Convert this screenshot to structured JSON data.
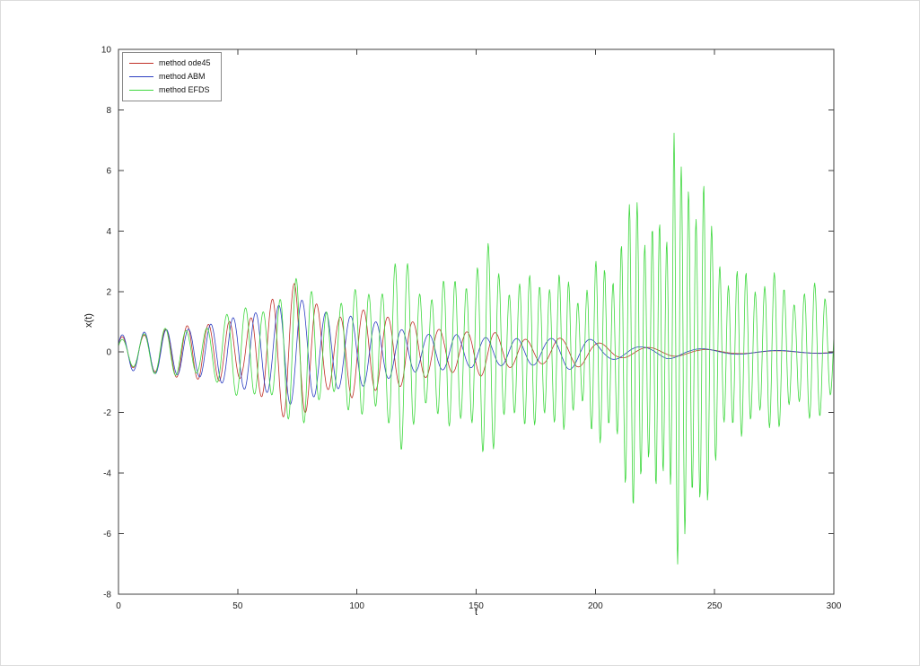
{
  "figure": {
    "background": "#ffffff",
    "border_color": "#dcdcdc",
    "axis_color": "#404040"
  },
  "chart_data": {
    "type": "line",
    "title": "",
    "xlabel": "t",
    "ylabel": "x(t)",
    "xlim": [
      0,
      300
    ],
    "ylim": [
      -8,
      10
    ],
    "xticks": [
      0,
      50,
      100,
      150,
      200,
      250,
      300
    ],
    "yticks": [
      -8,
      -6,
      -4,
      -2,
      0,
      2,
      4,
      6,
      8,
      10
    ],
    "grid": false,
    "legend_position": "top-left",
    "legend": [
      "method ode45",
      "method ABM",
      "method EFDS"
    ],
    "series": [
      {
        "name": "method ode45",
        "color": "#c03028",
        "phase0": 0.08,
        "am": {
          "depth": 0.18,
          "ratio": 0.23,
          "phase": 0.1
        },
        "amplitude_envelope": [
          [
            0,
            0.6
          ],
          [
            10,
            0.65
          ],
          [
            20,
            0.78
          ],
          [
            30,
            0.9
          ],
          [
            40,
            1.1
          ],
          [
            46,
            1.25
          ],
          [
            52,
            0.95
          ],
          [
            58,
            1.4
          ],
          [
            64,
            1.7
          ],
          [
            70,
            2.3
          ],
          [
            74,
            2.5
          ],
          [
            80,
            2.3
          ],
          [
            86,
            1.6
          ],
          [
            92,
            1.25
          ],
          [
            98,
            1.6
          ],
          [
            104,
            1.35
          ],
          [
            112,
            1.2
          ],
          [
            120,
            1.3
          ],
          [
            128,
            1.05
          ],
          [
            136,
            0.85
          ],
          [
            144,
            0.65
          ],
          [
            152,
            0.8
          ],
          [
            160,
            0.6
          ],
          [
            168,
            0.5
          ],
          [
            176,
            0.45
          ],
          [
            184,
            0.55
          ],
          [
            192,
            0.6
          ],
          [
            200,
            0.35
          ],
          [
            210,
            0.2
          ],
          [
            222,
            0.15
          ],
          [
            232,
            0.15
          ],
          [
            242,
            0.1
          ],
          [
            260,
            0.06
          ],
          [
            300,
            0.04
          ]
        ],
        "period_profile": [
          [
            0,
            9.2
          ],
          [
            50,
            8.8
          ],
          [
            80,
            9.5
          ],
          [
            110,
            10.2
          ],
          [
            140,
            11.5
          ],
          [
            170,
            13
          ],
          [
            200,
            18
          ],
          [
            240,
            26
          ],
          [
            300,
            36
          ]
        ]
      },
      {
        "name": "method ABM",
        "color": "#2d3fc2",
        "phase0": 0.08,
        "am": {
          "depth": 0.18,
          "ratio": 0.19,
          "phase": 0.5
        },
        "amplitude_envelope": [
          [
            0,
            0.6
          ],
          [
            10,
            0.65
          ],
          [
            20,
            0.78
          ],
          [
            30,
            0.9
          ],
          [
            40,
            1.15
          ],
          [
            48,
            1.25
          ],
          [
            56,
            1.3
          ],
          [
            64,
            1.35
          ],
          [
            70,
            1.8
          ],
          [
            76,
            2.0
          ],
          [
            84,
            1.7
          ],
          [
            92,
            1.45
          ],
          [
            100,
            1.3
          ],
          [
            110,
            0.95
          ],
          [
            120,
            0.72
          ],
          [
            130,
            0.65
          ],
          [
            140,
            0.72
          ],
          [
            150,
            0.6
          ],
          [
            160,
            0.5
          ],
          [
            170,
            0.45
          ],
          [
            180,
            0.42
          ],
          [
            188,
            0.6
          ],
          [
            196,
            0.5
          ],
          [
            204,
            0.3
          ],
          [
            212,
            0.25
          ],
          [
            220,
            0.2
          ],
          [
            230,
            0.28
          ],
          [
            240,
            0.15
          ],
          [
            252,
            0.1
          ],
          [
            270,
            0.06
          ],
          [
            300,
            0.04
          ]
        ],
        "period_profile": [
          [
            0,
            9.2
          ],
          [
            50,
            9.4
          ],
          [
            80,
            10.0
          ],
          [
            110,
            10.8
          ],
          [
            140,
            11.8
          ],
          [
            170,
            13.5
          ],
          [
            200,
            19
          ],
          [
            240,
            28
          ],
          [
            300,
            38
          ]
        ]
      },
      {
        "name": "method EFDS",
        "color": "#3fd83f",
        "phase0": 0.08,
        "am": {
          "depth": 0.32,
          "ratio": 0.27,
          "phase": 0.2
        },
        "amplitude_envelope": [
          [
            0,
            0.6
          ],
          [
            15,
            0.72
          ],
          [
            30,
            0.95
          ],
          [
            45,
            1.3
          ],
          [
            55,
            1.6
          ],
          [
            65,
            2.1
          ],
          [
            72,
            2.5
          ],
          [
            80,
            2.35
          ],
          [
            90,
            1.8
          ],
          [
            100,
            2.1
          ],
          [
            108,
            2.6
          ],
          [
            118,
            3.3
          ],
          [
            124,
            2.8
          ],
          [
            132,
            2.3
          ],
          [
            140,
            2.5
          ],
          [
            148,
            3.3
          ],
          [
            155,
            3.6
          ],
          [
            162,
            2.9
          ],
          [
            170,
            2.4
          ],
          [
            178,
            3.0
          ],
          [
            186,
            2.6
          ],
          [
            194,
            2.3
          ],
          [
            200,
            3.0
          ],
          [
            208,
            3.4
          ],
          [
            214,
            4.8
          ],
          [
            218,
            6.6
          ],
          [
            222,
            4.3
          ],
          [
            227,
            4.5
          ],
          [
            231,
            5.4
          ],
          [
            233,
            9.5
          ],
          [
            236,
            6.2
          ],
          [
            240,
            6.0
          ],
          [
            245,
            7.0
          ],
          [
            248,
            4.3
          ],
          [
            253,
            3.4
          ],
          [
            258,
            3.0
          ],
          [
            265,
            2.6
          ],
          [
            272,
            3.0
          ],
          [
            280,
            2.2
          ],
          [
            288,
            2.4
          ],
          [
            295,
            2.2
          ],
          [
            300,
            1.9
          ]
        ],
        "period_profile": [
          [
            0,
            9.2
          ],
          [
            40,
            8.5
          ],
          [
            60,
            7.2
          ],
          [
            80,
            6.4
          ],
          [
            100,
            5.8
          ],
          [
            120,
            5.2
          ],
          [
            140,
            4.8
          ],
          [
            160,
            4.4
          ],
          [
            180,
            4.1
          ],
          [
            200,
            3.7
          ],
          [
            215,
            3.3
          ],
          [
            228,
            3.0
          ],
          [
            240,
            3.1
          ],
          [
            255,
            3.6
          ],
          [
            275,
            4.1
          ],
          [
            300,
            4.5
          ]
        ]
      }
    ]
  }
}
